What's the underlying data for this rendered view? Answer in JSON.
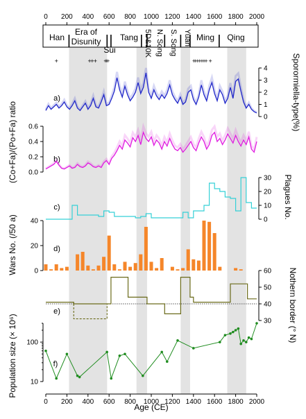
{
  "chart_data": {
    "type": "multi-panel",
    "x_axis": {
      "label": "Age (CE)",
      "range": [
        0,
        2000
      ],
      "ticks": [
        "0",
        "200",
        "400",
        "600",
        "800",
        "1000",
        "1200",
        "1400",
        "1600",
        "1800",
        "2000"
      ]
    },
    "dynasties": [
      {
        "name": "Han",
        "start": 0,
        "end": 220,
        "shaded": false
      },
      {
        "name": "Era of Disunity",
        "start": 220,
        "end": 581,
        "shaded": true
      },
      {
        "name": "Sui",
        "start": 581,
        "end": 618,
        "shaded": false
      },
      {
        "name": "Tang",
        "start": 618,
        "end": 907,
        "shaded": false
      },
      {
        "name": "5D&10K",
        "start": 907,
        "end": 960,
        "shaded": true
      },
      {
        "name": "N. Song",
        "start": 960,
        "end": 1127,
        "shaded": false
      },
      {
        "name": "S. Song",
        "start": 1127,
        "end": 1279,
        "shaded": false
      },
      {
        "name": "Yuan",
        "start": 1279,
        "end": 1368,
        "shaded": true
      },
      {
        "name": "Ming",
        "start": 1368,
        "end": 1644,
        "shaded": false
      },
      {
        "name": "Qing",
        "start": 1644,
        "end": 1912,
        "shaded": false
      }
    ],
    "shaded_intervals": [
      [
        220,
        581
      ],
      [
        860,
        960
      ],
      [
        1279,
        1368
      ],
      [
        1720,
        1900
      ]
    ],
    "dating_marks": [
      100,
      415,
      440,
      470,
      565,
      575,
      590,
      1405,
      1420,
      1440,
      1460,
      1480,
      1500,
      1520,
      1560
    ],
    "panels": [
      {
        "id": "a",
        "label": "a)",
        "ylabel": "Sporormiella-type(%)",
        "ylim": [
          0,
          4
        ],
        "ticks": [
          0,
          1,
          2,
          3,
          4
        ],
        "side": "right",
        "color": "#1f26c9",
        "x": [
          0,
          25,
          50,
          75,
          100,
          125,
          150,
          175,
          200,
          225,
          250,
          275,
          300,
          325,
          350,
          375,
          400,
          425,
          450,
          475,
          500,
          525,
          550,
          575,
          600,
          625,
          650,
          675,
          700,
          725,
          750,
          775,
          800,
          825,
          850,
          875,
          900,
          925,
          950,
          975,
          1000,
          1025,
          1050,
          1075,
          1100,
          1125,
          1150,
          1175,
          1200,
          1225,
          1250,
          1275,
          1300,
          1325,
          1350,
          1375,
          1400,
          1425,
          1450,
          1475,
          1500,
          1525,
          1550,
          1575,
          1600,
          1625,
          1650,
          1675,
          1700,
          1725,
          1750,
          1775,
          1800,
          1825,
          1850,
          1875,
          1900,
          1925,
          1950,
          1975,
          2000
        ],
        "y": [
          0.5,
          0.9,
          0.6,
          0.8,
          1.0,
          0.7,
          0.9,
          1.2,
          0.8,
          0.6,
          0.9,
          1.3,
          0.7,
          0.5,
          0.8,
          1.1,
          0.6,
          0.9,
          1.5,
          0.8,
          0.7,
          1.2,
          1.8,
          0.9,
          1.0,
          1.5,
          2.1,
          3.2,
          2.2,
          1.6,
          2.5,
          1.8,
          1.3,
          1.6,
          2.0,
          2.8,
          1.9,
          2.4,
          3.6,
          2.0,
          1.5,
          2.2,
          1.7,
          1.4,
          1.8,
          1.5,
          1.9,
          2.6,
          1.8,
          1.4,
          1.1,
          1.6,
          1.0,
          1.2,
          2.0,
          2.2,
          1.4,
          1.0,
          1.6,
          2.6,
          1.8,
          1.3,
          2.2,
          2.8,
          1.9,
          1.3,
          2.2,
          1.8,
          1.1,
          1.5,
          2.4,
          1.5,
          2.9,
          3.1,
          2.1,
          1.2,
          0.7,
          1.0,
          0.6,
          0.4,
          0.3
        ]
      },
      {
        "id": "b",
        "label": "b)",
        "ylabel": "(Co+Fa)/(Po+Fa) ratio",
        "ylim": [
          0,
          0.6
        ],
        "ticks": [
          0.0,
          0.2,
          0.4,
          0.6
        ],
        "tick_labels": [
          "0.0",
          "0.2",
          "0.4",
          "0.6"
        ],
        "side": "left",
        "color": "#e01be0",
        "x": [
          0,
          25,
          50,
          75,
          100,
          125,
          150,
          175,
          200,
          225,
          250,
          275,
          300,
          325,
          350,
          375,
          400,
          425,
          450,
          475,
          500,
          525,
          550,
          575,
          600,
          625,
          650,
          675,
          700,
          725,
          750,
          775,
          800,
          825,
          850,
          875,
          900,
          925,
          950,
          975,
          1000,
          1025,
          1050,
          1075,
          1100,
          1125,
          1150,
          1175,
          1200,
          1225,
          1250,
          1275,
          1300,
          1325,
          1350,
          1375,
          1400,
          1425,
          1450,
          1475,
          1500,
          1525,
          1550,
          1575,
          1600,
          1625,
          1650,
          1675,
          1700,
          1725,
          1750,
          1775,
          1800,
          1825,
          1850,
          1875,
          1900,
          1925,
          1950,
          1975,
          2000
        ],
        "y": [
          0.04,
          0.06,
          0.08,
          0.1,
          0.14,
          0.09,
          0.05,
          0.04,
          0.06,
          0.08,
          0.05,
          0.06,
          0.1,
          0.07,
          0.06,
          0.08,
          0.12,
          0.1,
          0.07,
          0.06,
          0.08,
          0.06,
          0.12,
          0.15,
          0.1,
          0.18,
          0.22,
          0.28,
          0.35,
          0.3,
          0.42,
          0.38,
          0.33,
          0.45,
          0.4,
          0.48,
          0.36,
          0.52,
          0.44,
          0.4,
          0.46,
          0.35,
          0.42,
          0.38,
          0.3,
          0.4,
          0.34,
          0.44,
          0.36,
          0.3,
          0.28,
          0.32,
          0.26,
          0.3,
          0.35,
          0.4,
          0.32,
          0.28,
          0.38,
          0.46,
          0.4,
          0.3,
          0.36,
          0.48,
          0.52,
          0.4,
          0.44,
          0.36,
          0.42,
          0.5,
          0.44,
          0.38,
          0.48,
          0.4,
          0.34,
          0.42,
          0.36,
          0.46,
          0.3,
          0.26,
          0.4
        ]
      },
      {
        "id": "c",
        "label": "c)",
        "ylabel": "Plagues No.",
        "ylim": [
          0,
          30
        ],
        "ticks": [
          0,
          10,
          20,
          30
        ],
        "side": "right",
        "color": "#34d0d6",
        "x": [
          0,
          100,
          200,
          250,
          300,
          500,
          550,
          600,
          650,
          700,
          800,
          850,
          900,
          950,
          1000,
          1200,
          1300,
          1350,
          1400,
          1500,
          1550,
          1600,
          1650,
          1700,
          1750,
          1800,
          1850,
          1900,
          1950,
          2000
        ],
        "y": [
          0,
          0,
          0,
          10,
          3,
          2,
          6,
          5,
          2,
          2,
          2,
          1,
          2,
          4,
          1,
          1,
          5,
          1,
          6,
          10,
          26,
          22,
          20,
          16,
          15,
          6,
          30,
          12,
          8,
          8
        ]
      },
      {
        "id": "d",
        "label": "d)",
        "ylabel": "Wars No. (/50 a)",
        "ylim": [
          0,
          40
        ],
        "ticks": [
          0,
          20,
          40
        ],
        "side": "left",
        "color": "#f5862a",
        "x": [
          0,
          50,
          100,
          150,
          200,
          300,
          350,
          400,
          450,
          500,
          550,
          600,
          650,
          700,
          750,
          800,
          850,
          900,
          950,
          1000,
          1050,
          1100,
          1200,
          1250,
          1300,
          1350,
          1400,
          1450,
          1500,
          1550,
          1600,
          1650,
          1800,
          1850
        ],
        "y": [
          5,
          1,
          5,
          2,
          3,
          13,
          15,
          4,
          1,
          4,
          11,
          28,
          5,
          1,
          7,
          3,
          6,
          13,
          35,
          7,
          2,
          10,
          3,
          1,
          2,
          17,
          9,
          8,
          40,
          39,
          30,
          3,
          2,
          1
        ]
      },
      {
        "id": "e",
        "label": "e)",
        "ylabel": "Nothern border (° N)",
        "ylim": [
          30,
          60
        ],
        "ticks": [
          30,
          40,
          50,
          60
        ],
        "side": "right",
        "color": "#6b6b1a",
        "reference_line": 40,
        "x": [
          0,
          220,
          265,
          581,
          618,
          700,
          780,
          907,
          960,
          1127,
          1279,
          1368,
          1400,
          1644,
          1750,
          1800,
          1912,
          2000
        ],
        "y": [
          41,
          41,
          40,
          40,
          56,
          56,
          44,
          44,
          40,
          34,
          56,
          44,
          41,
          41,
          52,
          52,
          43,
          43
        ]
      },
      {
        "id": "f",
        "label": "f)",
        "ylabel": "Population size (× 10⁶)",
        "ylim": [
          10,
          300
        ],
        "ticks": [
          10,
          100
        ],
        "side": "left",
        "scale": "log",
        "color": "#1f8c1f",
        "x": [
          0,
          100,
          200,
          300,
          320,
          580,
          620,
          700,
          750,
          920,
          1100,
          1150,
          1250,
          1400,
          1650,
          1700,
          1750,
          1775,
          1800,
          1825,
          1850,
          1875,
          1900,
          1925,
          1950,
          2000
        ],
        "y": [
          60,
          12,
          50,
          14,
          13,
          56,
          12,
          45,
          50,
          14,
          56,
          32,
          110,
          70,
          100,
          150,
          165,
          180,
          200,
          220,
          90,
          110,
          100,
          130,
          120,
          300
        ]
      }
    ]
  }
}
